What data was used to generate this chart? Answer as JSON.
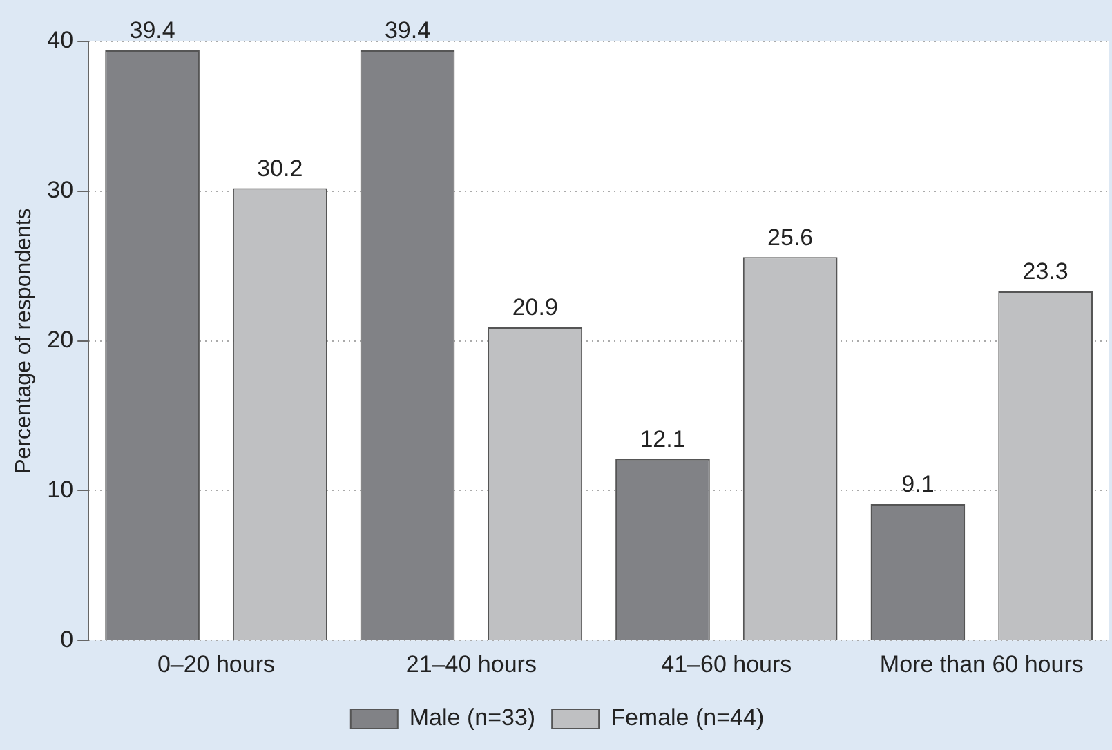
{
  "chart_data": {
    "type": "bar",
    "ylabel": "Percentage of respondents",
    "categories": [
      "0–20 hours",
      "21–40 hours",
      "41–60 hours",
      "More than 60 hours"
    ],
    "series": [
      {
        "name": "Male (n=33)",
        "color": "#818286",
        "values": [
          39.4,
          39.4,
          12.1,
          9.1
        ]
      },
      {
        "name": "Female (n=44)",
        "color": "#bfc0c2",
        "values": [
          30.2,
          20.9,
          25.6,
          23.3
        ]
      }
    ],
    "ylim": [
      0,
      40
    ],
    "yticks": [
      0,
      10,
      20,
      30,
      40
    ],
    "grid": "y",
    "legend": "bottom",
    "data_labels": true
  }
}
